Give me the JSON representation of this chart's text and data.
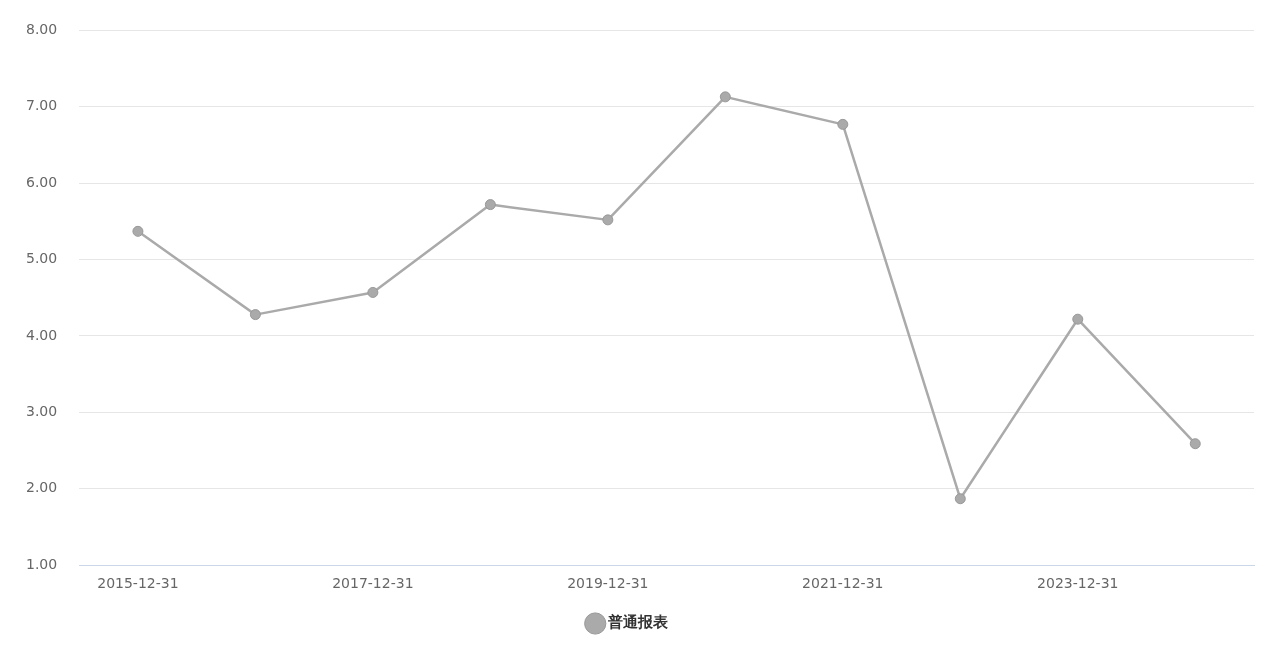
{
  "chart_data": {
    "type": "line",
    "categories": [
      "2015-12-31",
      null,
      "2017-12-31",
      null,
      "2019-12-31",
      null,
      "2021-12-31",
      null,
      "2023-12-31",
      null
    ],
    "series": [
      {
        "name": "普通报表",
        "color": "#aaaaaa",
        "values": [
          5.37,
          4.28,
          4.57,
          5.72,
          5.52,
          7.13,
          6.77,
          1.87,
          4.22,
          2.59
        ]
      }
    ],
    "ylim": [
      1,
      8
    ],
    "yticks": [
      {
        "value": 1,
        "label": "1.00"
      },
      {
        "value": 2,
        "label": "2.00"
      },
      {
        "value": 3,
        "label": "3.00"
      },
      {
        "value": 4,
        "label": "4.00"
      },
      {
        "value": 5,
        "label": "5.00"
      },
      {
        "value": 6,
        "label": "6.00"
      },
      {
        "value": 7,
        "label": "7.00"
      },
      {
        "value": 8,
        "label": "8.00"
      }
    ],
    "grid": "y",
    "legend": "bottom",
    "marker": "circle",
    "line_style": "solid"
  }
}
